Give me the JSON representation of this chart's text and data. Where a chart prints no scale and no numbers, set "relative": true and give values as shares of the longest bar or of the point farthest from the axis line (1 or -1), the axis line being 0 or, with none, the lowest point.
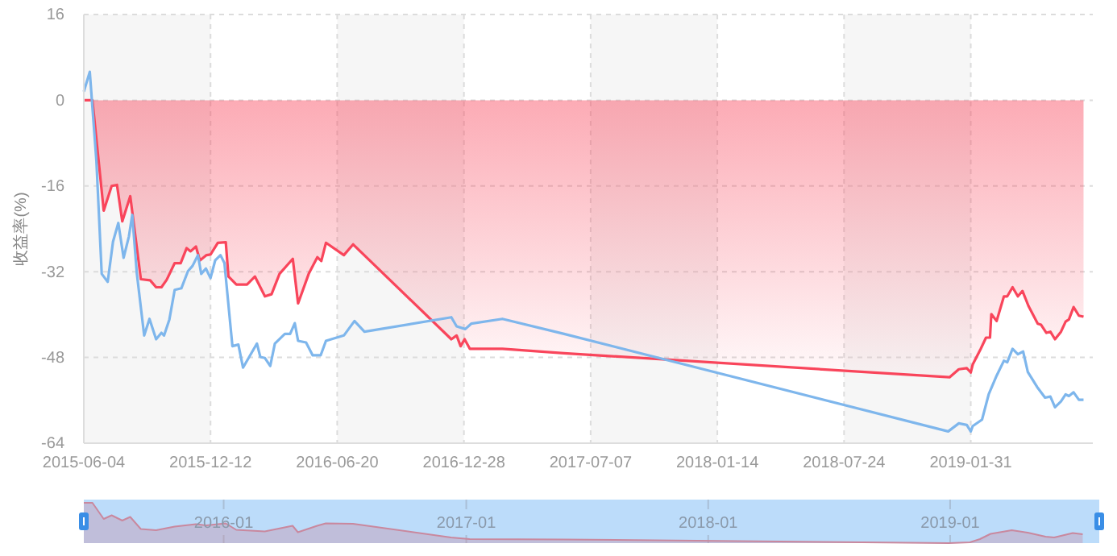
{
  "chart_data": [
    {
      "type": "line",
      "ylabel": "收益率(%)",
      "xlim": [
        "2015-06-04",
        "2019-08-03"
      ],
      "ylim": [
        -64,
        16
      ],
      "yticks": [
        -64,
        -48,
        -32,
        -16,
        0,
        16
      ],
      "xticks": [
        "2015-06-04",
        "2015-12-12",
        "2016-06-20",
        "2016-12-28",
        "2017-07-07",
        "2018-01-14",
        "2018-07-24",
        "2019-01-31"
      ],
      "grid": true,
      "marker": "none",
      "line_style": "solid",
      "series": [
        {
          "type": "area",
          "color": "#f9455b",
          "x": [
            "2015-06-04",
            "2015-06-17",
            "2015-07-04",
            "2015-07-16",
            "2015-07-24",
            "2015-08-01",
            "2015-08-13",
            "2015-08-29",
            "2015-09-12",
            "2015-09-21",
            "2015-09-29",
            "2015-10-07",
            "2015-10-19",
            "2015-10-28",
            "2015-11-06",
            "2015-11-12",
            "2015-11-20",
            "2015-11-26",
            "2015-12-06",
            "2015-12-12",
            "2015-12-23",
            "2016-01-04",
            "2016-01-08",
            "2016-01-20",
            "2016-02-05",
            "2016-02-17",
            "2016-03-03",
            "2016-03-13",
            "2016-03-25",
            "2016-04-14",
            "2016-04-22",
            "2016-05-08",
            "2016-05-21",
            "2016-05-27",
            "2016-06-03",
            "2016-06-30",
            "2016-07-14",
            "2016-12-09",
            "2016-12-17",
            "2016-12-23",
            "2016-12-29",
            "2017-01-06",
            "2017-02-24",
            "2017-05-28",
            "2018-12-30",
            "2019-01-13",
            "2019-01-25",
            "2019-01-31",
            "2019-02-03",
            "2019-02-15",
            "2019-02-23",
            "2019-03-01",
            "2019-03-03",
            "2019-03-11",
            "2019-03-22",
            "2019-03-27",
            "2019-04-04",
            "2019-04-12",
            "2019-04-19",
            "2019-04-28",
            "2019-05-12",
            "2019-05-17",
            "2019-05-25",
            "2019-05-31",
            "2019-06-07",
            "2019-06-16",
            "2019-06-23",
            "2019-06-28",
            "2019-07-05",
            "2019-07-13",
            "2019-07-20"
          ],
          "values": [
            0,
            0,
            -20.6,
            -16,
            -15.8,
            -22.6,
            -17.9,
            -33.4,
            -33.6,
            -34.9,
            -34.9,
            -33.5,
            -30.4,
            -30.4,
            -27.6,
            -28.2,
            -27.3,
            -29.9,
            -28.9,
            -28.8,
            -26.6,
            -26.5,
            -32.9,
            -34.4,
            -34.4,
            -32.9,
            -36.6,
            -36.2,
            -32.4,
            -29.6,
            -37.9,
            -32.4,
            -29.3,
            -30,
            -26.6,
            -28.9,
            -26.9,
            -44.6,
            -43.9,
            -45.9,
            -44.6,
            -46.4,
            -46.4,
            -47.2,
            -51.7,
            -50.2,
            -50,
            -50.8,
            -49.3,
            -46.4,
            -44.3,
            -44.3,
            -39.9,
            -41.2,
            -36.6,
            -36.6,
            -34.9,
            -36.6,
            -35.6,
            -38.4,
            -41.7,
            -41.9,
            -43.4,
            -43.2,
            -44.6,
            -43.2,
            -41.3,
            -40.9,
            -38.6,
            -40.2,
            -40.4
          ]
        },
        {
          "type": "line",
          "color": "#7eb6ec",
          "x": [
            "2015-06-04",
            "2015-06-13",
            "2015-06-23",
            "2015-07-01",
            "2015-07-10",
            "2015-07-18",
            "2015-07-26",
            "2015-08-03",
            "2015-08-11",
            "2015-08-16",
            "2015-08-23",
            "2015-09-03",
            "2015-09-11",
            "2015-09-21",
            "2015-09-29",
            "2015-10-03",
            "2015-10-11",
            "2015-10-19",
            "2015-10-29",
            "2015-11-08",
            "2015-11-15",
            "2015-11-23",
            "2015-11-28",
            "2015-12-05",
            "2015-12-12",
            "2015-12-19",
            "2015-12-27",
            "2016-01-02",
            "2016-01-14",
            "2016-01-23",
            "2016-01-30",
            "2016-02-20",
            "2016-02-25",
            "2016-03-03",
            "2016-03-11",
            "2016-03-18",
            "2016-04-02",
            "2016-04-10",
            "2016-04-17",
            "2016-04-22",
            "2016-05-04",
            "2016-05-14",
            "2016-05-26",
            "2016-06-03",
            "2016-06-30",
            "2016-07-16",
            "2016-07-31",
            "2016-12-09",
            "2016-12-17",
            "2016-12-30",
            "2017-01-08",
            "2017-02-24",
            "2017-05-28",
            "2018-12-28",
            "2019-01-13",
            "2019-01-25",
            "2019-01-31",
            "2019-02-03",
            "2019-02-17",
            "2019-02-27",
            "2019-03-11",
            "2019-03-22",
            "2019-03-27",
            "2019-04-04",
            "2019-04-12",
            "2019-04-20",
            "2019-04-27",
            "2019-05-11",
            "2019-05-23",
            "2019-05-31",
            "2019-06-07",
            "2019-06-16",
            "2019-06-23",
            "2019-06-28",
            "2019-07-05",
            "2019-07-13",
            "2019-07-20"
          ],
          "values": [
            1.6,
            5.3,
            -11.4,
            -32.4,
            -33.9,
            -26.4,
            -22.9,
            -29.4,
            -25.4,
            -21.4,
            -32.4,
            -43.9,
            -40.8,
            -44.6,
            -43.4,
            -43.9,
            -40.9,
            -35.4,
            -35.1,
            -31.9,
            -30.9,
            -28.9,
            -32.4,
            -31.4,
            -33.2,
            -29.9,
            -28.9,
            -30.4,
            -45.9,
            -45.6,
            -49.9,
            -45.4,
            -47.9,
            -48.1,
            -49.6,
            -45.4,
            -43.6,
            -43.6,
            -41.6,
            -44.9,
            -45.2,
            -47.6,
            -47.6,
            -44.9,
            -43.9,
            -41.2,
            -43.2,
            -40.5,
            -42.2,
            -42.7,
            -41.7,
            -40.8,
            -43.6,
            -61.8,
            -60.3,
            -60.6,
            -61.8,
            -60.8,
            -59.6,
            -54.9,
            -51.4,
            -48.6,
            -48.9,
            -46.4,
            -47.4,
            -46.9,
            -50.7,
            -53.5,
            -55.5,
            -55.3,
            -57.3,
            -56.2,
            -54.9,
            -55.2,
            -54.5,
            -55.9,
            -55.9
          ]
        }
      ]
    },
    {
      "type": "area",
      "relative": true,
      "grid": "x",
      "color": "#c9889e",
      "tick_labels": "x",
      "xlim": [
        "2015-06-04",
        "2019-08-14"
      ],
      "xticks": [
        {
          "value": "2016-01",
          "label": "2016-01"
        },
        {
          "value": "2017-01",
          "label": "2017-01"
        },
        {
          "value": "2018-01",
          "label": "2018-01"
        },
        {
          "value": "2019-01",
          "label": "2019-01"
        }
      ],
      "x": [
        "2015-06-04",
        "2015-06-17",
        "2015-07-04",
        "2015-07-16",
        "2015-08-01",
        "2015-08-13",
        "2015-08-29",
        "2015-09-21",
        "2015-10-19",
        "2015-11-20",
        "2015-12-06",
        "2016-01-04",
        "2016-01-20",
        "2016-03-03",
        "2016-04-14",
        "2016-04-22",
        "2016-05-21",
        "2016-06-03",
        "2016-07-14",
        "2016-12-09",
        "2017-01-06",
        "2017-05-28",
        "2018-12-30",
        "2019-01-31",
        "2019-02-15",
        "2019-03-03",
        "2019-04-04",
        "2019-04-28",
        "2019-05-25",
        "2019-06-07",
        "2019-07-05",
        "2019-07-20"
      ],
      "values": [
        1,
        1,
        0.6,
        0.69,
        0.56,
        0.65,
        0.35,
        0.32,
        0.41,
        0.47,
        0.44,
        0.49,
        0.33,
        0.29,
        0.43,
        0.27,
        0.43,
        0.49,
        0.48,
        0.14,
        0.1,
        0.09,
        0,
        0.02,
        0.1,
        0.23,
        0.32,
        0.26,
        0.16,
        0.14,
        0.25,
        0.22
      ]
    }
  ]
}
